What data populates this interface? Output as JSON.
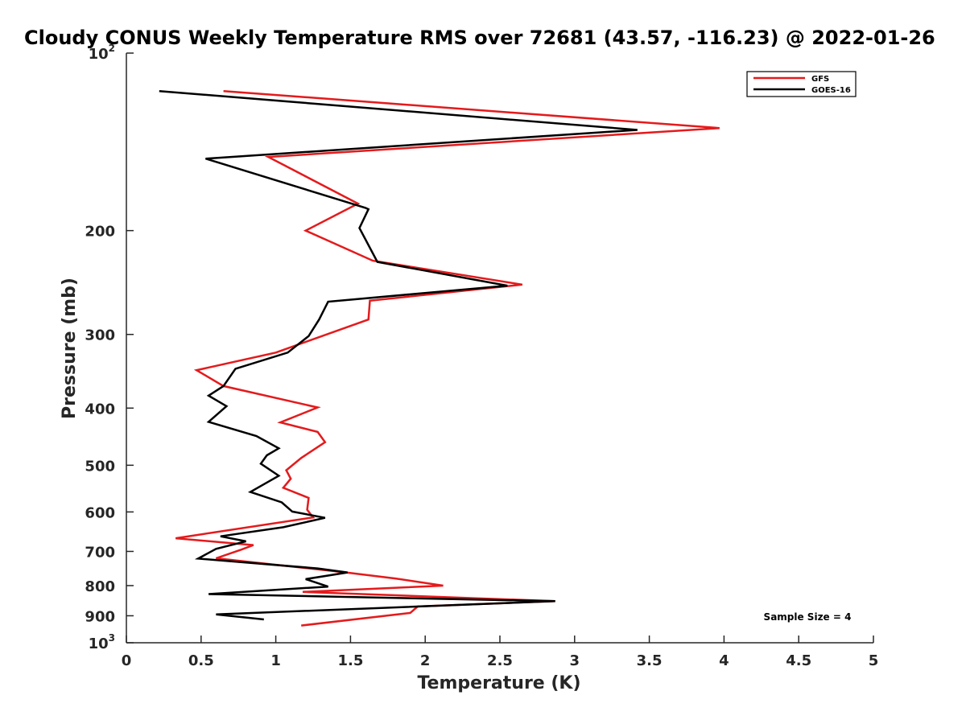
{
  "chart_data": {
    "type": "line",
    "title": "Cloudy CONUS Weekly Temperature RMS over 72681 (43.57, -116.23) @ 2022-01-26",
    "xlabel": "Temperature (K)",
    "ylabel": "Pressure (mb)",
    "xlim": [
      0,
      5
    ],
    "ylim": [
      100,
      1000
    ],
    "y_scale": "log",
    "y_reversed": true,
    "x_ticks": [
      "0",
      "0.5",
      "1",
      "1.5",
      "2",
      "2.5",
      "3",
      "3.5",
      "4",
      "4.5",
      "5"
    ],
    "y_ticks": [
      {
        "value": 100,
        "base": "10",
        "exp": "2"
      },
      {
        "value": 200,
        "label": "200"
      },
      {
        "value": 300,
        "label": "300"
      },
      {
        "value": 400,
        "label": "400"
      },
      {
        "value": 500,
        "label": "500"
      },
      {
        "value": 600,
        "label": "600"
      },
      {
        "value": 700,
        "label": "700"
      },
      {
        "value": 800,
        "label": "800"
      },
      {
        "value": 900,
        "label": "900"
      },
      {
        "value": 1000,
        "base": "10",
        "exp": "3"
      }
    ],
    "grid": false,
    "legend_position": "top-right",
    "annotation": "Sample Size = 4",
    "series": [
      {
        "name": "GFS",
        "color": "#e41a1c",
        "points": [
          [
            0.65,
            116
          ],
          [
            3.97,
            134
          ],
          [
            0.95,
            150
          ],
          [
            1.55,
            180
          ],
          [
            1.2,
            200
          ],
          [
            1.65,
            225
          ],
          [
            2.65,
            247
          ],
          [
            1.63,
            263
          ],
          [
            1.62,
            283
          ],
          [
            1.0,
            322
          ],
          [
            0.47,
            345
          ],
          [
            0.65,
            367
          ],
          [
            1.28,
            399
          ],
          [
            1.03,
            423
          ],
          [
            1.28,
            439
          ],
          [
            1.33,
            457
          ],
          [
            1.17,
            486
          ],
          [
            1.07,
            510
          ],
          [
            1.1,
            527
          ],
          [
            1.05,
            546
          ],
          [
            1.22,
            568
          ],
          [
            1.21,
            595
          ],
          [
            1.25,
            613
          ],
          [
            0.33,
            665
          ],
          [
            0.85,
            683
          ],
          [
            0.77,
            695
          ],
          [
            0.6,
            719
          ],
          [
            1.47,
            760
          ],
          [
            1.8,
            778
          ],
          [
            2.12,
            800
          ],
          [
            1.18,
            820
          ],
          [
            2.87,
            850
          ],
          [
            1.95,
            868
          ],
          [
            1.9,
            890
          ],
          [
            1.17,
            935
          ]
        ]
      },
      {
        "name": "GOES-16",
        "color": "#000000",
        "points": [
          [
            0.22,
            116
          ],
          [
            3.42,
            135
          ],
          [
            0.53,
            151
          ],
          [
            1.6,
            183
          ],
          [
            1.62,
            184
          ],
          [
            1.56,
            198
          ],
          [
            1.68,
            226
          ],
          [
            2.55,
            248
          ],
          [
            1.35,
            264
          ],
          [
            1.29,
            283
          ],
          [
            1.22,
            302
          ],
          [
            1.08,
            322
          ],
          [
            0.73,
            343
          ],
          [
            0.65,
            367
          ],
          [
            0.55,
            381
          ],
          [
            0.67,
            397
          ],
          [
            0.55,
            422
          ],
          [
            0.87,
            446
          ],
          [
            1.02,
            468
          ],
          [
            0.94,
            481
          ],
          [
            0.9,
            497
          ],
          [
            1.02,
            521
          ],
          [
            0.83,
            555
          ],
          [
            1.04,
            578
          ],
          [
            1.11,
            599
          ],
          [
            1.33,
            614
          ],
          [
            1.05,
            637
          ],
          [
            0.63,
            660
          ],
          [
            0.8,
            673
          ],
          [
            0.6,
            693
          ],
          [
            0.55,
            704
          ],
          [
            0.48,
            720
          ],
          [
            1.28,
            748
          ],
          [
            1.48,
            760
          ],
          [
            1.2,
            780
          ],
          [
            1.35,
            803
          ],
          [
            0.55,
            827
          ],
          [
            2.87,
            850
          ],
          [
            0.6,
            895
          ],
          [
            0.92,
            913
          ]
        ]
      }
    ]
  }
}
